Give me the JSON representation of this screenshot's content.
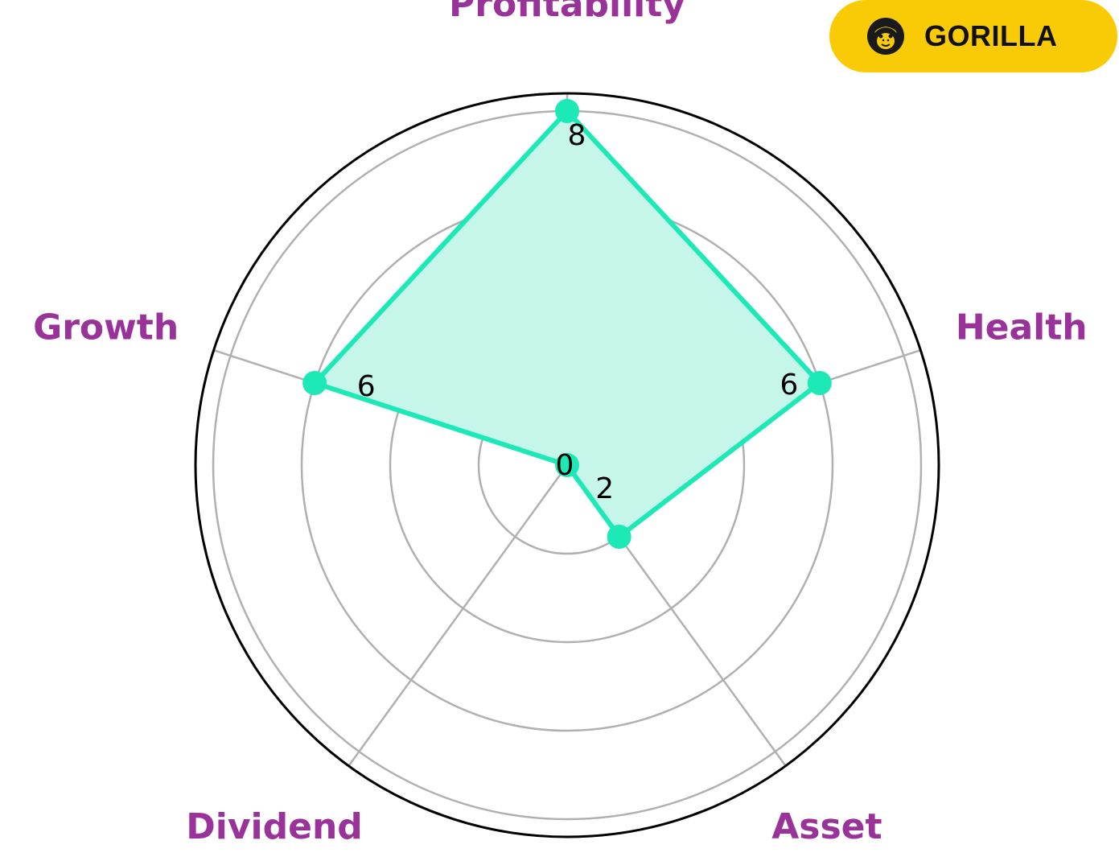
{
  "brand": {
    "name": "GORILLA",
    "logo_icon": "gorilla-head-icon",
    "background_color": "#F9CB06"
  },
  "chart_data": {
    "type": "radar",
    "categories": [
      "Profitability",
      "Health",
      "Asset",
      "Dividend",
      "Growth"
    ],
    "values": [
      8,
      6,
      2,
      0,
      6
    ],
    "value_labels": [
      "8",
      "6",
      "2",
      "0",
      "6"
    ],
    "rlim": [
      0,
      8
    ],
    "grid": true,
    "colors": {
      "series": "#1DE9B6",
      "fill": "#C6F6EA",
      "label": "#993399",
      "grid": "#b0b0b0",
      "frame": "#000000"
    }
  }
}
